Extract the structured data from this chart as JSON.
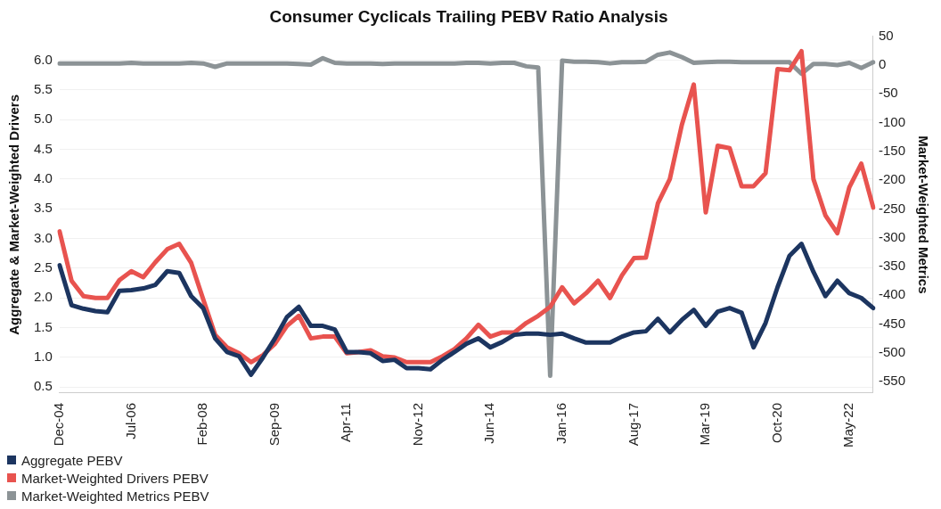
{
  "chart_data": {
    "type": "line",
    "title": "Consumer Cyclicals Trailing PEBV Ratio Analysis",
    "ylabel": "Aggregate & Market-Weighted Drivers",
    "y2label": "Market-Weighted Metrics",
    "categories": [
      "Dec-04",
      null,
      null,
      null,
      null,
      null,
      "Jul-06",
      null,
      null,
      null,
      null,
      null,
      "Feb-08",
      null,
      null,
      null,
      null,
      null,
      "Sep-09",
      null,
      null,
      null,
      null,
      null,
      "Apr-11",
      null,
      null,
      null,
      null,
      null,
      "Nov-12",
      null,
      null,
      null,
      null,
      null,
      "Jun-14",
      null,
      null,
      null,
      null,
      null,
      "Jan-16",
      null,
      null,
      null,
      null,
      null,
      "Aug-17",
      null,
      null,
      null,
      null,
      null,
      "Mar-19",
      null,
      null,
      null,
      null,
      null,
      "Oct-20",
      null,
      null,
      null,
      null,
      null,
      "May-22",
      null,
      null
    ],
    "series": [
      {
        "name": "Aggregate PEBV",
        "color": "#1c3560",
        "values": [
          2.55,
          1.88,
          1.82,
          1.78,
          1.76,
          2.12,
          2.13,
          2.16,
          2.22,
          2.45,
          2.42,
          2.03,
          1.83,
          1.32,
          1.09,
          1.02,
          0.71,
          1.0,
          1.32,
          1.68,
          1.85,
          1.53,
          1.53,
          1.47,
          1.09,
          1.09,
          1.07,
          0.94,
          0.96,
          0.82,
          0.82,
          0.8,
          0.96,
          1.09,
          1.23,
          1.32,
          1.17,
          1.26,
          1.38,
          1.4,
          1.4,
          1.38,
          1.4,
          1.32,
          1.25,
          1.25,
          1.25,
          1.35,
          1.42,
          1.44,
          1.65,
          1.42,
          1.63,
          1.8,
          1.53,
          1.77,
          1.83,
          1.75,
          1.17,
          1.58,
          2.18,
          2.71,
          2.91,
          2.44,
          2.03,
          2.29,
          2.08,
          2.0,
          1.83
        ]
      },
      {
        "name": "Market-Weighted Drivers PEBV",
        "color": "#e8534f",
        "values": [
          3.12,
          2.29,
          2.03,
          2.0,
          2.0,
          2.3,
          2.45,
          2.35,
          2.6,
          2.82,
          2.91,
          2.59,
          1.98,
          1.38,
          1.17,
          1.07,
          0.92,
          1.04,
          1.23,
          1.53,
          1.7,
          1.32,
          1.35,
          1.35,
          1.07,
          1.09,
          1.12,
          1.02,
          1.0,
          0.92,
          0.92,
          0.92,
          1.02,
          1.14,
          1.32,
          1.55,
          1.35,
          1.42,
          1.42,
          1.58,
          1.7,
          1.85,
          2.18,
          1.91,
          2.08,
          2.29,
          2.0,
          2.38,
          2.67,
          2.68,
          3.59,
          4.0,
          4.91,
          5.59,
          3.44,
          4.56,
          4.52,
          3.88,
          3.88,
          4.1,
          5.85,
          5.83,
          6.15,
          4.0,
          3.39,
          3.09,
          3.86,
          4.26,
          3.52
        ]
      },
      {
        "name": "Market-Weighted Metrics PEBV",
        "color": "#8c9396",
        "axis": "y2",
        "values": [
          3,
          3,
          3,
          3,
          3,
          3,
          4,
          3,
          3,
          3,
          3,
          4,
          3,
          -3,
          3,
          3,
          3,
          3,
          3,
          3,
          2,
          1,
          12,
          4,
          3,
          3,
          3,
          2,
          3,
          3,
          3,
          3,
          3,
          3,
          4,
          4,
          3,
          4,
          4,
          -2,
          -4,
          -540,
          8,
          6,
          6,
          5,
          3,
          5,
          5,
          6,
          18,
          22,
          14,
          4,
          5,
          6,
          6,
          5,
          5,
          5,
          5,
          5,
          -15,
          2,
          2,
          0,
          4,
          -5,
          5
        ]
      }
    ],
    "ylim": [
      0.4,
      6.4
    ],
    "yticks": [
      0.5,
      {
        "value": 1,
        "label": "1.0"
      },
      1.5,
      {
        "value": 2,
        "label": "2.0"
      },
      2.5,
      {
        "value": 3,
        "label": "3.0"
      },
      3.5,
      {
        "value": 4,
        "label": "4.0"
      },
      4.5,
      {
        "value": 5,
        "label": "5.0"
      },
      5.5,
      {
        "value": 6,
        "label": "6.0"
      }
    ],
    "y2lim": [
      -570,
      50
    ],
    "y2ticks": [
      50,
      0,
      -50,
      -100,
      -150,
      -200,
      -250,
      -300,
      -350,
      -400,
      -450,
      -500,
      -550
    ],
    "grid": "y",
    "legend": "bottom left",
    "marker": "none",
    "line_style": "solid"
  }
}
